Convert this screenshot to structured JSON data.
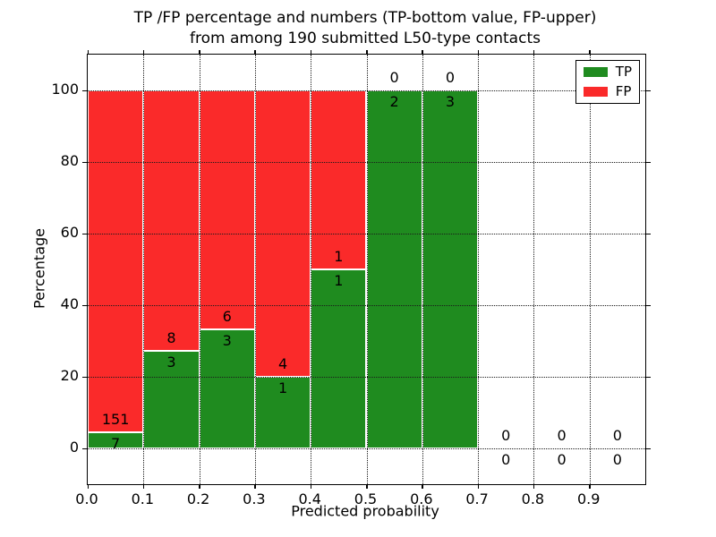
{
  "chart_data": {
    "type": "bar",
    "stacked": true,
    "title_line1": "TP /FP percentage and numbers (TP-bottom value, FP-upper)",
    "title_line2": "from among 190 submitted L50-type contacts",
    "xlabel": "Predicted probability",
    "ylabel": "Percentage",
    "xlim": [
      0.0,
      1.0
    ],
    "ylim": [
      -10,
      110
    ],
    "grid": true,
    "x_ticks": [
      {
        "v": 0.0,
        "label": "0.0"
      },
      {
        "v": 0.1,
        "label": "0.1"
      },
      {
        "v": 0.2,
        "label": "0.2"
      },
      {
        "v": 0.3,
        "label": "0.3"
      },
      {
        "v": 0.4,
        "label": "0.4"
      },
      {
        "v": 0.5,
        "label": "0.5"
      },
      {
        "v": 0.6,
        "label": "0.6"
      },
      {
        "v": 0.7,
        "label": "0.7"
      },
      {
        "v": 0.8,
        "label": "0.8"
      },
      {
        "v": 0.9,
        "label": "0.9"
      }
    ],
    "y_ticks": [
      {
        "v": 0,
        "label": "0"
      },
      {
        "v": 20,
        "label": "20"
      },
      {
        "v": 40,
        "label": "40"
      },
      {
        "v": 60,
        "label": "60"
      },
      {
        "v": 80,
        "label": "80"
      },
      {
        "v": 100,
        "label": "100"
      }
    ],
    "bins": [
      {
        "x0": 0.0,
        "x1": 0.1,
        "tp": 7,
        "fp": 151
      },
      {
        "x0": 0.1,
        "x1": 0.2,
        "tp": 3,
        "fp": 8
      },
      {
        "x0": 0.2,
        "x1": 0.3,
        "tp": 3,
        "fp": 6
      },
      {
        "x0": 0.3,
        "x1": 0.4,
        "tp": 1,
        "fp": 4
      },
      {
        "x0": 0.4,
        "x1": 0.5,
        "tp": 1,
        "fp": 1
      },
      {
        "x0": 0.5,
        "x1": 0.6,
        "tp": 2,
        "fp": 0
      },
      {
        "x0": 0.6,
        "x1": 0.7,
        "tp": 3,
        "fp": 0
      },
      {
        "x0": 0.7,
        "x1": 0.8,
        "tp": 0,
        "fp": 0
      },
      {
        "x0": 0.8,
        "x1": 0.9,
        "tp": 0,
        "fp": 0
      },
      {
        "x0": 0.9,
        "x1": 1.0,
        "tp": 0,
        "fp": 0
      }
    ],
    "legend": {
      "position": "upper right",
      "items": [
        {
          "label": "TP",
          "color": "#1f8b1f"
        },
        {
          "label": "FP",
          "color": "#fa2a2a"
        }
      ]
    },
    "colors": {
      "tp": "#1f8b1f",
      "fp": "#fa2a2a",
      "grid": "#1a1a1a",
      "frame": "#000000",
      "bar_edge": "#ffffff",
      "text": "#000000"
    }
  }
}
